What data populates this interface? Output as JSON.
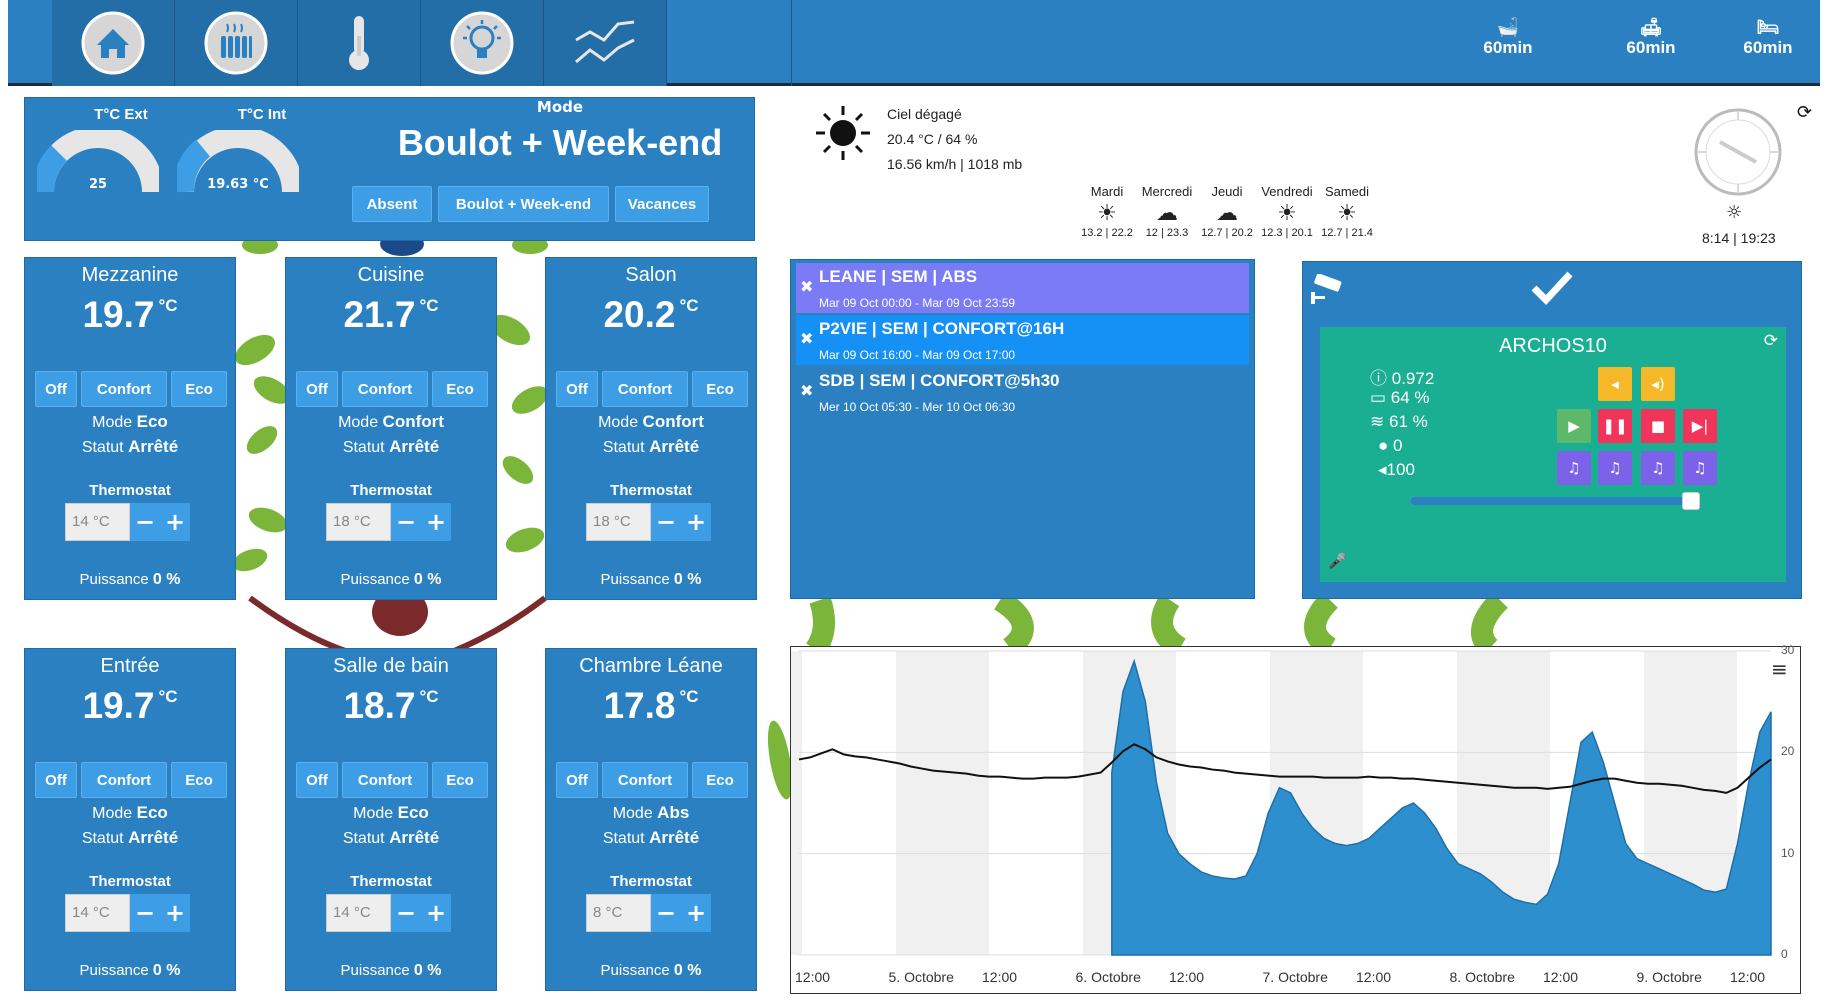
{
  "quick_timers": [
    {
      "icon": "bathtub-icon",
      "label": "60min"
    },
    {
      "icon": "sofa-icon",
      "label": "60min"
    },
    {
      "icon": "bed-icon",
      "label": "60min"
    }
  ],
  "summary": {
    "ext_label": "T°C Ext",
    "ext_value": "25",
    "int_label": "T°C Int",
    "int_value": "19.63 °C",
    "mode_label": "Mode",
    "mode_value": "Boulot + Week-end",
    "modes": [
      "Absent",
      "Boulot + Week-end",
      "Vacances"
    ]
  },
  "weather": {
    "desc": "Ciel dégagé",
    "temp_hum": "20.4 °C / 64 %",
    "wind_press": "16.56 km/h | 1018 mb",
    "forecast": [
      {
        "day": "Mardi",
        "range": "13.2 | 22.2",
        "icon": "sun-icon"
      },
      {
        "day": "Mercredi",
        "range": "12 | 23.3",
        "icon": "cloud-icon"
      },
      {
        "day": "Jeudi",
        "range": "12.7 | 20.2",
        "icon": "cloud-icon"
      },
      {
        "day": "Vendredi",
        "range": "12.3 | 20.1",
        "icon": "sun-icon"
      },
      {
        "day": "Samedi",
        "range": "12.7 | 21.4",
        "icon": "sun-icon"
      }
    ],
    "sun_times": "8:14 | 19:23"
  },
  "rooms": [
    {
      "name": "Mezzanine",
      "temp": "19.7",
      "unit": "°C",
      "off": "Off",
      "confort": "Confort",
      "eco": "Eco",
      "mode_lbl": "Mode",
      "mode": "Eco",
      "statut_lbl": "Statut",
      "statut": "Arrêté",
      "thermostat_lbl": "Thermostat",
      "thermostat": "14 °C",
      "puissance_lbl": "Puissance",
      "puissance": "0 %"
    },
    {
      "name": "Cuisine",
      "temp": "21.7",
      "unit": "°C",
      "off": "Off",
      "confort": "Confort",
      "eco": "Eco",
      "mode_lbl": "Mode",
      "mode": "Confort",
      "statut_lbl": "Statut",
      "statut": "Arrêté",
      "thermostat_lbl": "Thermostat",
      "thermostat": "18 °C",
      "puissance_lbl": "Puissance",
      "puissance": "0 %"
    },
    {
      "name": "Salon",
      "temp": "20.2",
      "unit": "°C",
      "off": "Off",
      "confort": "Confort",
      "eco": "Eco",
      "mode_lbl": "Mode",
      "mode": "Confort",
      "statut_lbl": "Statut",
      "statut": "Arrêté",
      "thermostat_lbl": "Thermostat",
      "thermostat": "18 °C",
      "puissance_lbl": "Puissance",
      "puissance": "0 %"
    },
    {
      "name": "Entrée",
      "temp": "19.7",
      "unit": "°C",
      "off": "Off",
      "confort": "Confort",
      "eco": "Eco",
      "mode_lbl": "Mode",
      "mode": "Eco",
      "statut_lbl": "Statut",
      "statut": "Arrêté",
      "thermostat_lbl": "Thermostat",
      "thermostat": "14 °C",
      "puissance_lbl": "Puissance",
      "puissance": "0 %"
    },
    {
      "name": "Salle de bain",
      "temp": "18.7",
      "unit": "°C",
      "off": "Off",
      "confort": "Confort",
      "eco": "Eco",
      "mode_lbl": "Mode",
      "mode": "Eco",
      "statut_lbl": "Statut",
      "statut": "Arrêté",
      "thermostat_lbl": "Thermostat",
      "thermostat": "14 °C",
      "puissance_lbl": "Puissance",
      "puissance": "0 %"
    },
    {
      "name": "Chambre Léane",
      "temp": "17.8",
      "unit": "°C",
      "off": "Off",
      "confort": "Confort",
      "eco": "Eco",
      "mode_lbl": "Mode",
      "mode": "Abs",
      "statut_lbl": "Statut",
      "statut": "Arrêté",
      "thermostat_lbl": "Thermostat",
      "thermostat": "8 °C",
      "puissance_lbl": "Puissance",
      "puissance": "0 %"
    }
  ],
  "events": [
    {
      "title": "LEANE | SEM | ABS",
      "dates": "Mar 09 Oct 00:00 - Mar 09 Oct 23:59",
      "color": "#7b7cf5"
    },
    {
      "title": "P2VIE | SEM | CONFORT@16H",
      "dates": "Mar 09 Oct 16:00 - Mar 09 Oct 17:00",
      "color": "#1590f5"
    },
    {
      "title": "SDB | SEM | CONFORT@5h30",
      "dates": "Mer 10 Oct 05:30 - Mer 10 Oct 06:30",
      "color": "#2b80c2"
    }
  ],
  "tablet": {
    "name": "ARCHOS10",
    "info": "0.972",
    "battery": "64 %",
    "wifi": "61 %",
    "messages": "0",
    "volume": "100",
    "volume_level": 0.97
  },
  "chart_data": {
    "type": "area",
    "x_ticks": [
      "12:00",
      "5. Octobre",
      "12:00",
      "6. Octobre",
      "12:00",
      "7. Octobre",
      "12:00",
      "8. Octobre",
      "12:00",
      "9. Octobre",
      "12:00"
    ],
    "y_ticks": [
      "0",
      "10",
      "20",
      "30"
    ],
    "ylim": [
      0,
      30
    ],
    "area_color": "#2e8fcf",
    "line_color": "#111111",
    "series": [
      {
        "values": [
          null,
          null,
          null,
          null,
          null,
          null,
          null,
          null,
          null,
          null,
          null,
          null,
          null,
          null,
          null,
          null,
          null,
          null,
          null,
          null,
          null,
          null,
          null,
          null,
          null,
          null,
          null,
          null,
          18,
          26,
          29,
          25,
          17,
          12,
          10,
          9,
          8.2,
          7.8,
          7.6,
          7.5,
          7.8,
          10,
          14,
          16.5,
          16,
          14,
          12.5,
          11.5,
          11,
          10.8,
          11,
          11.5,
          12.5,
          13.5,
          14.5,
          15,
          14,
          12.5,
          10.5,
          9,
          8.5,
          8,
          7.2,
          6.2,
          5.5,
          5.2,
          5,
          6,
          9,
          15,
          21,
          22,
          19,
          15,
          11,
          9.5,
          9,
          8.5,
          8,
          7.5,
          7,
          6.4,
          6.2,
          6.5,
          11,
          17,
          22,
          24
        ]
      },
      {
        "values": [
          19.3,
          19.5,
          19.9,
          20.3,
          19.8,
          19.6,
          19.5,
          19.3,
          19.1,
          18.9,
          18.6,
          18.4,
          18.2,
          18.1,
          18.0,
          17.9,
          17.7,
          17.6,
          17.6,
          17.5,
          17.4,
          17.4,
          17.5,
          17.5,
          17.5,
          17.6,
          17.8,
          18.0,
          19.0,
          20.1,
          20.8,
          20.3,
          19.5,
          19.1,
          18.8,
          18.6,
          18.5,
          18.3,
          18.2,
          18.0,
          17.9,
          17.8,
          17.7,
          17.6,
          17.6,
          17.6,
          17.6,
          17.5,
          17.5,
          17.5,
          17.5,
          17.6,
          17.5,
          17.5,
          17.4,
          17.4,
          17.3,
          17.2,
          17.1,
          17.0,
          16.9,
          16.8,
          16.7,
          16.6,
          16.5,
          16.5,
          16.5,
          16.4,
          16.5,
          16.6,
          16.9,
          17.2,
          17.4,
          17.4,
          17.2,
          17.0,
          16.9,
          16.9,
          16.8,
          16.7,
          16.5,
          16.3,
          16.2,
          16.0,
          16.5,
          17.5,
          18.5,
          19.3
        ]
      }
    ]
  }
}
